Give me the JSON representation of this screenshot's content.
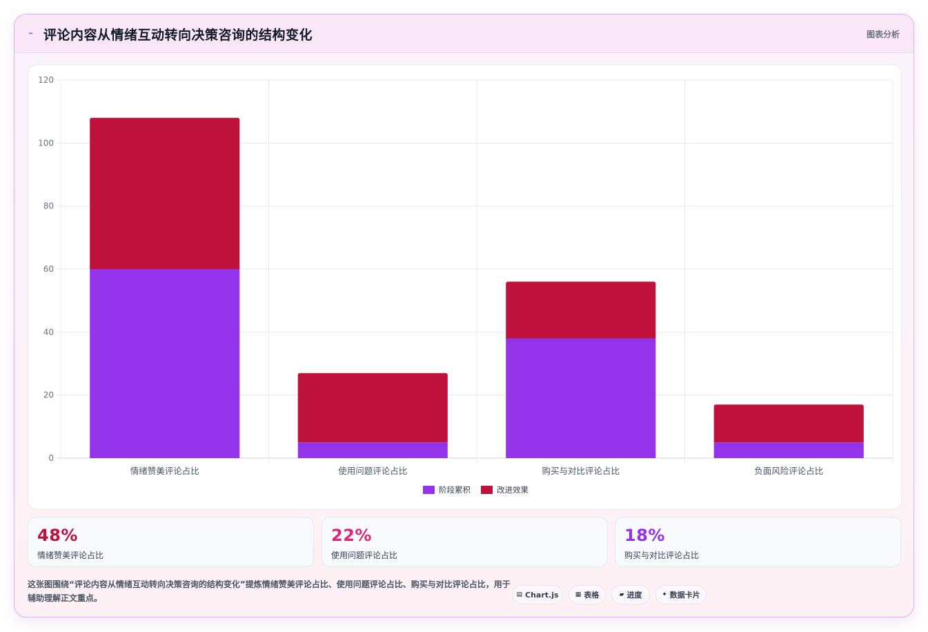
{
  "header": {
    "title": "评论内容从情绪互动转向决策咨询的结构变化",
    "title_icon": "trend-line-icon",
    "tag": "图表分析"
  },
  "chart_data": {
    "type": "bar",
    "stacked": true,
    "categories": [
      "情绪赞美评论占比",
      "使用问题评论占比",
      "购买与对比评论占比",
      "负面风险评论占比"
    ],
    "series": [
      {
        "name": "阶段累积",
        "color": "#9333ea",
        "values": [
          60,
          5,
          38,
          5
        ]
      },
      {
        "name": "改进效果",
        "color": "#be123c",
        "values": [
          48,
          22,
          18,
          12
        ]
      }
    ],
    "y_ticks": [
      "0",
      "20",
      "40",
      "60",
      "80",
      "100",
      "120"
    ],
    "ylim": [
      0,
      120
    ],
    "grid": true,
    "legend_position": "bottom"
  },
  "stats": [
    {
      "value": "48%",
      "label": "情绪赞美评论占比",
      "color": "#be123c"
    },
    {
      "value": "22%",
      "label": "使用问题评论占比",
      "color": "#db2777"
    },
    {
      "value": "18%",
      "label": "购买与对比评论占比",
      "color": "#9333ea"
    }
  ],
  "description": "这张图围绕“评论内容从情绪互动转向决策咨询的结构变化”提炼情绪赞美评论占比、使用问题评论占比、购买与对比评论占比，用于辅助理解正文重点。",
  "chips": [
    {
      "icon": "chart-icon",
      "glyph": "▤",
      "label": "Chart.js"
    },
    {
      "icon": "table-icon",
      "glyph": "▦",
      "label": "表格"
    },
    {
      "icon": "progress-icon",
      "glyph": "▰",
      "label": "进度"
    },
    {
      "icon": "sparkle-icon",
      "glyph": "✦",
      "label": "数据卡片"
    }
  ]
}
